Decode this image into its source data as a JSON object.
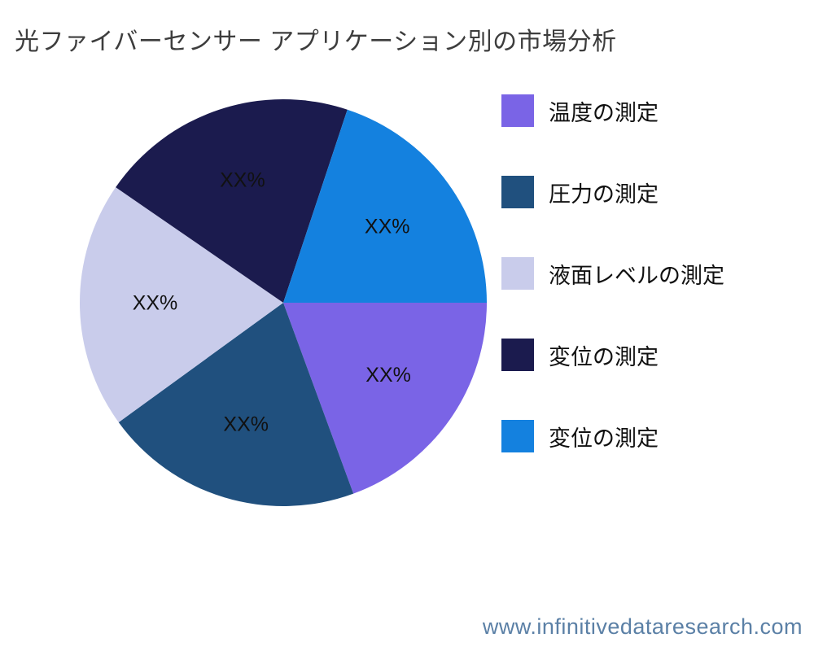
{
  "title": "光ファイバーセンサー アプリケーション別の市場分析",
  "footer": {
    "website": "www.infinitivedataresearch.com",
    "color": "#5b80a6"
  },
  "chart_data": {
    "type": "pie",
    "title": "光ファイバーセンサー アプリケーション別の市場分析",
    "start_angle_deg": 0,
    "direction": "clockwise",
    "legend_position": "right",
    "background": "#ffffff",
    "segments": [
      {
        "label": "温度の測定",
        "value_pct": 19.4,
        "display_label": "XX%",
        "color": "#7a64e6"
      },
      {
        "label": "圧力の測定",
        "value_pct": 20.6,
        "display_label": "XX%",
        "color": "#20507e"
      },
      {
        "label": "液面レベルの測定",
        "value_pct": 19.6,
        "display_label": "XX%",
        "color": "#c9cceb"
      },
      {
        "label": "変位の測定",
        "value_pct": 20.5,
        "display_label": "XX%",
        "color": "#1b1b4e"
      },
      {
        "label": "変位の測定",
        "value_pct": 19.9,
        "display_label": "XX%",
        "color": "#1481df"
      }
    ]
  }
}
